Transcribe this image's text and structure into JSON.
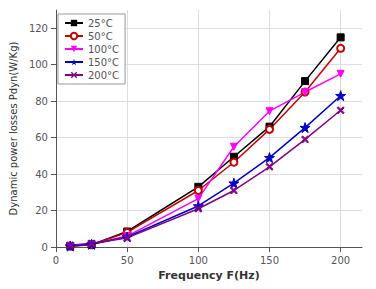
{
  "chart_data": {
    "type": "line",
    "x_label": "Frequency F(Hz)",
    "y_label": "Dynamic power losses Pdyn(W/Kg)",
    "x": [
      10,
      25,
      50,
      100,
      125,
      150,
      175,
      200
    ],
    "series": [
      {
        "name": "25°C",
        "color": "#000000",
        "marker": "square",
        "values": [
          0.5,
          1.2,
          8.5,
          33.0,
          49.5,
          66.0,
          91.0,
          115.0
        ]
      },
      {
        "name": "50°C",
        "color": "#cc0000",
        "marker": "open circle",
        "values": [
          0.5,
          1.2,
          8.0,
          31.0,
          46.5,
          64.5,
          85.0,
          109.0
        ]
      },
      {
        "name": "100°C",
        "color": "#ff00ff",
        "marker": "triangle_down",
        "values": [
          0.5,
          1.5,
          6.0,
          26.5,
          55.0,
          74.5,
          85.0,
          95.0
        ]
      },
      {
        "name": "150°C",
        "color": "#0000cc",
        "marker": "star",
        "values": [
          0.5,
          1.5,
          5.5,
          22.5,
          35.0,
          49.0,
          65.5,
          83.0
        ]
      },
      {
        "name": "200°C",
        "color": "#880088",
        "marker": "x",
        "values": [
          1.0,
          2.0,
          5.0,
          21.0,
          31.0,
          44.0,
          59.0,
          75.0
        ]
      }
    ],
    "xlim": [
      0,
      215
    ],
    "ylim": [
      0,
      130
    ],
    "xticks": [
      0,
      50,
      100,
      150,
      200
    ],
    "yticks": [
      0,
      20,
      40,
      60,
      80,
      100,
      120
    ],
    "grid": true,
    "legend": "upper left"
  }
}
